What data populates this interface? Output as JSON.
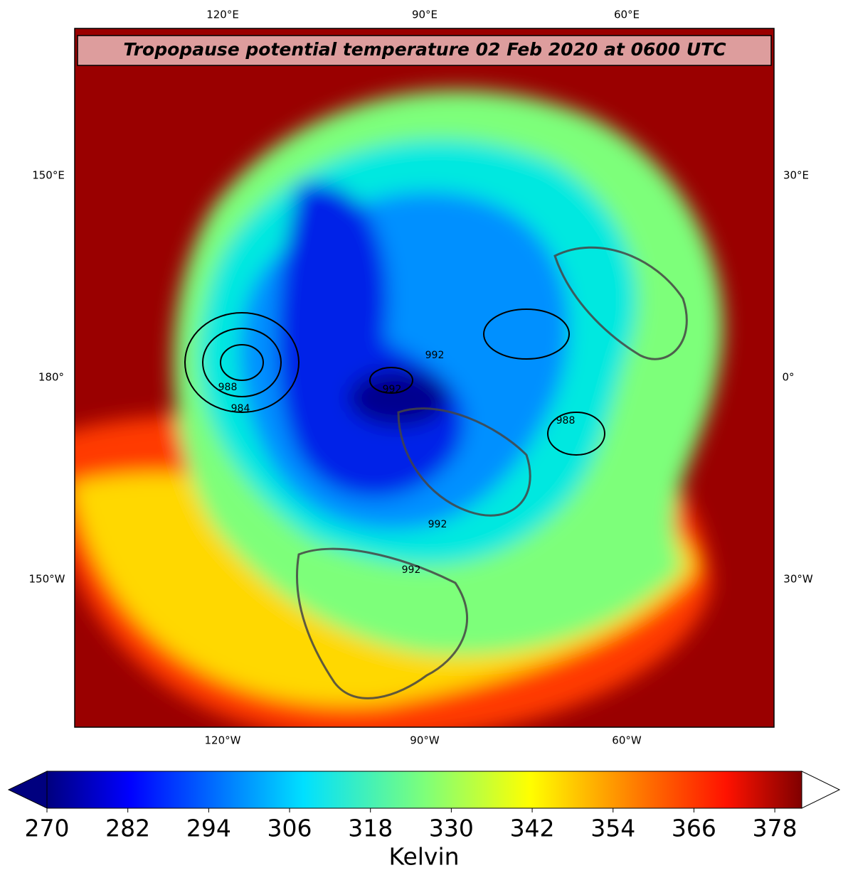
{
  "chart_data": {
    "type": "map",
    "title": "Tropopause potential temperature 02 Feb 2020 at 0600 UTC",
    "top_labels": [
      "120°E",
      "90°E",
      "60°E"
    ],
    "left_labels": [
      "150°E",
      "180°",
      "150°W"
    ],
    "right_labels": [
      "30°E",
      "0°",
      "30°W"
    ],
    "bottom_labels": [
      "120°W",
      "90°W",
      "60°W"
    ],
    "contour_labels": [
      "992",
      "992",
      "992",
      "988",
      "988",
      "984",
      "992"
    ],
    "colorbar": {
      "label": "Kelvin",
      "lim": [
        270,
        382
      ],
      "ticks": [
        270,
        282,
        294,
        306,
        318,
        330,
        342,
        354,
        366,
        378
      ]
    }
  }
}
